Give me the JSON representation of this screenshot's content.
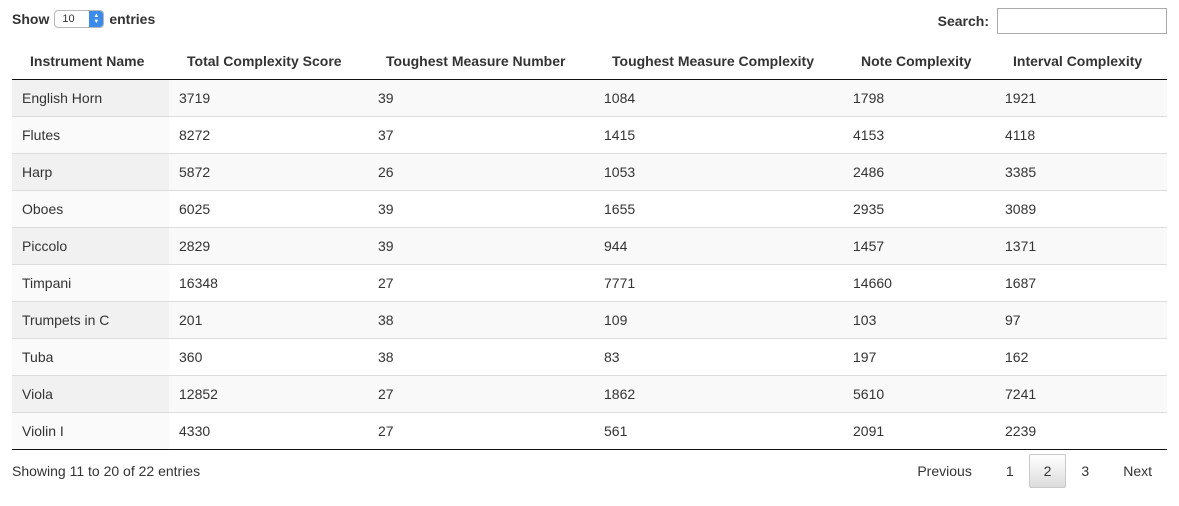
{
  "length": {
    "label_before": "Show",
    "selected": "10",
    "label_after": "entries"
  },
  "search": {
    "label": "Search:",
    "value": "",
    "placeholder": ""
  },
  "table": {
    "columns": [
      "Instrument Name",
      "Total Complexity Score",
      "Toughest Measure Number",
      "Toughest Measure Complexity",
      "Note Complexity",
      "Interval Complexity"
    ],
    "rows": [
      [
        "English Horn",
        "3719",
        "39",
        "1084",
        "1798",
        "1921"
      ],
      [
        "Flutes",
        "8272",
        "37",
        "1415",
        "4153",
        "4118"
      ],
      [
        "Harp",
        "5872",
        "26",
        "1053",
        "2486",
        "3385"
      ],
      [
        "Oboes",
        "6025",
        "39",
        "1655",
        "2935",
        "3089"
      ],
      [
        "Piccolo",
        "2829",
        "39",
        "944",
        "1457",
        "1371"
      ],
      [
        "Timpani",
        "16348",
        "27",
        "7771",
        "14660",
        "1687"
      ],
      [
        "Trumpets in C",
        "201",
        "38",
        "109",
        "103",
        "97"
      ],
      [
        "Tuba",
        "360",
        "38",
        "83",
        "197",
        "162"
      ],
      [
        "Viola",
        "12852",
        "27",
        "1862",
        "5610",
        "7241"
      ],
      [
        "Violin I",
        "4330",
        "27",
        "561",
        "2091",
        "2239"
      ]
    ]
  },
  "info": "Showing 11 to 20 of 22 entries",
  "pagination": {
    "previous": "Previous",
    "pages": [
      "1",
      "2",
      "3"
    ],
    "current": "2",
    "next": "Next"
  }
}
